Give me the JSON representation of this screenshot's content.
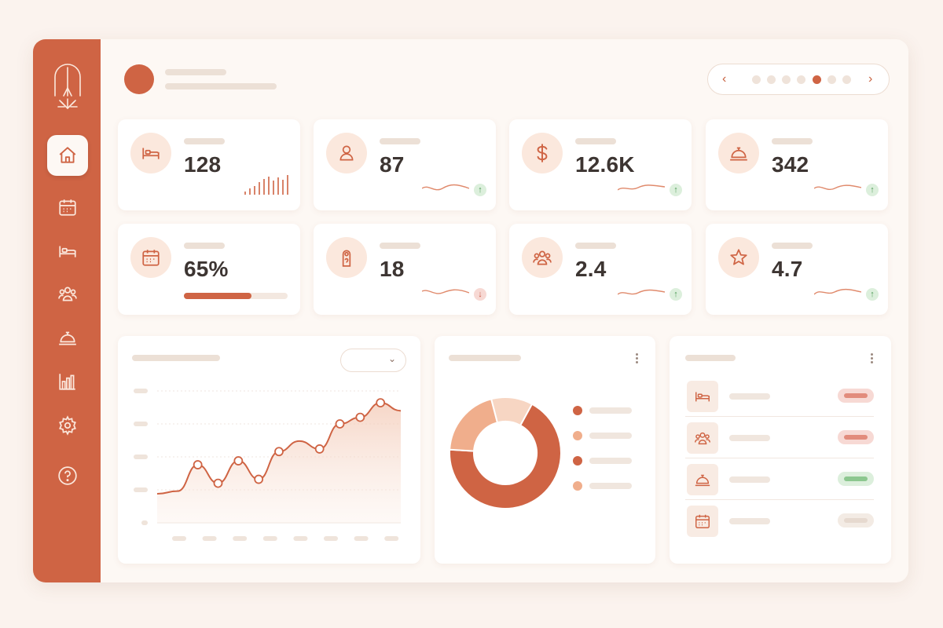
{
  "colors": {
    "accent": "#cf6444",
    "accent_light": "#f0ae8c",
    "accent_pale": "#f7d6c3",
    "background": "#fbf3ee",
    "up": "#4e9a57",
    "down": "#c95c49"
  },
  "sidebar": {
    "logo_icon": "hotel-bell-logo",
    "items": [
      {
        "icon": "home-icon",
        "active": true
      },
      {
        "icon": "calendar-icon",
        "active": false
      },
      {
        "icon": "bed-icon",
        "active": false
      },
      {
        "icon": "guests-icon",
        "active": false
      },
      {
        "icon": "service-bell-icon",
        "active": false
      },
      {
        "icon": "bar-chart-icon",
        "active": false
      },
      {
        "icon": "settings-icon",
        "active": false
      },
      {
        "icon": "help-icon",
        "active": false
      }
    ]
  },
  "header": {
    "pager": {
      "prev_icon": "chevron-left-icon",
      "next_icon": "chevron-right-icon",
      "prev_label": "‹",
      "next_label": "›",
      "page_count": 7,
      "current_page": 5
    }
  },
  "kpis": [
    {
      "icon": "bed-icon",
      "value": "128",
      "indicator": "bars"
    },
    {
      "icon": "user-icon",
      "value": "87",
      "indicator": "wave",
      "trend": "up",
      "trend_label": "↑"
    },
    {
      "icon": "dollar-icon",
      "value": "12.6K",
      "indicator": "wave",
      "trend": "up",
      "trend_label": "↑"
    },
    {
      "icon": "service-bell-icon",
      "value": "342",
      "indicator": "wave",
      "trend": "up",
      "trend_label": "↑"
    },
    {
      "icon": "calendar-icon",
      "value": "65%",
      "indicator": "progress",
      "progress": 0.65
    },
    {
      "icon": "door-hanger-icon",
      "value": "18",
      "indicator": "wave",
      "trend": "down",
      "trend_label": "↓"
    },
    {
      "icon": "guests-icon",
      "value": "2.4",
      "indicator": "wave",
      "trend": "up",
      "trend_label": "↑"
    },
    {
      "icon": "star-icon",
      "value": "4.7",
      "indicator": "wave",
      "trend": "up",
      "trend_label": "↑"
    }
  ],
  "line_panel": {
    "dropdown_icon": "chevron-down-icon",
    "dropdown_label": "⌄"
  },
  "list_panel": {
    "rows": [
      {
        "icon": "bed-icon",
        "status": "red"
      },
      {
        "icon": "guests-icon",
        "status": "red"
      },
      {
        "icon": "service-bell-icon",
        "status": "green"
      },
      {
        "icon": "calendar-icon",
        "status": "neutral"
      }
    ],
    "status_colors": {
      "red": {
        "bg": "#f7d9d4",
        "bar": "#e28c7c"
      },
      "green": {
        "bg": "#dcefdc",
        "bar": "#8cc78f"
      },
      "neutral": {
        "bg": "#f3ebe4",
        "bar": "#e6d9cf"
      }
    }
  },
  "chart_data": [
    {
      "type": "area",
      "title": "",
      "xlabel": "",
      "ylabel": "",
      "x": [
        1,
        2,
        3,
        4,
        5,
        6,
        7,
        8,
        9,
        10,
        11,
        12,
        13
      ],
      "series": [
        {
          "values": [
            22,
            24,
            44,
            30,
            47,
            33,
            54,
            62,
            56,
            75,
            80,
            91,
            85
          ]
        }
      ],
      "markers": [
        2,
        3,
        4,
        5,
        6,
        8,
        9,
        10,
        11
      ],
      "ylim": [
        0,
        100
      ],
      "grid": true,
      "legend": "none"
    },
    {
      "type": "pie",
      "donut": true,
      "title": "",
      "values": [
        68,
        20,
        12
      ],
      "colors": [
        "#cf6444",
        "#f0ae8c",
        "#f7d6c3"
      ],
      "legend": "right",
      "legend_swatches": [
        "#cf6444",
        "#f0ae8c",
        "#cf6444",
        "#f0ae8c"
      ]
    }
  ]
}
